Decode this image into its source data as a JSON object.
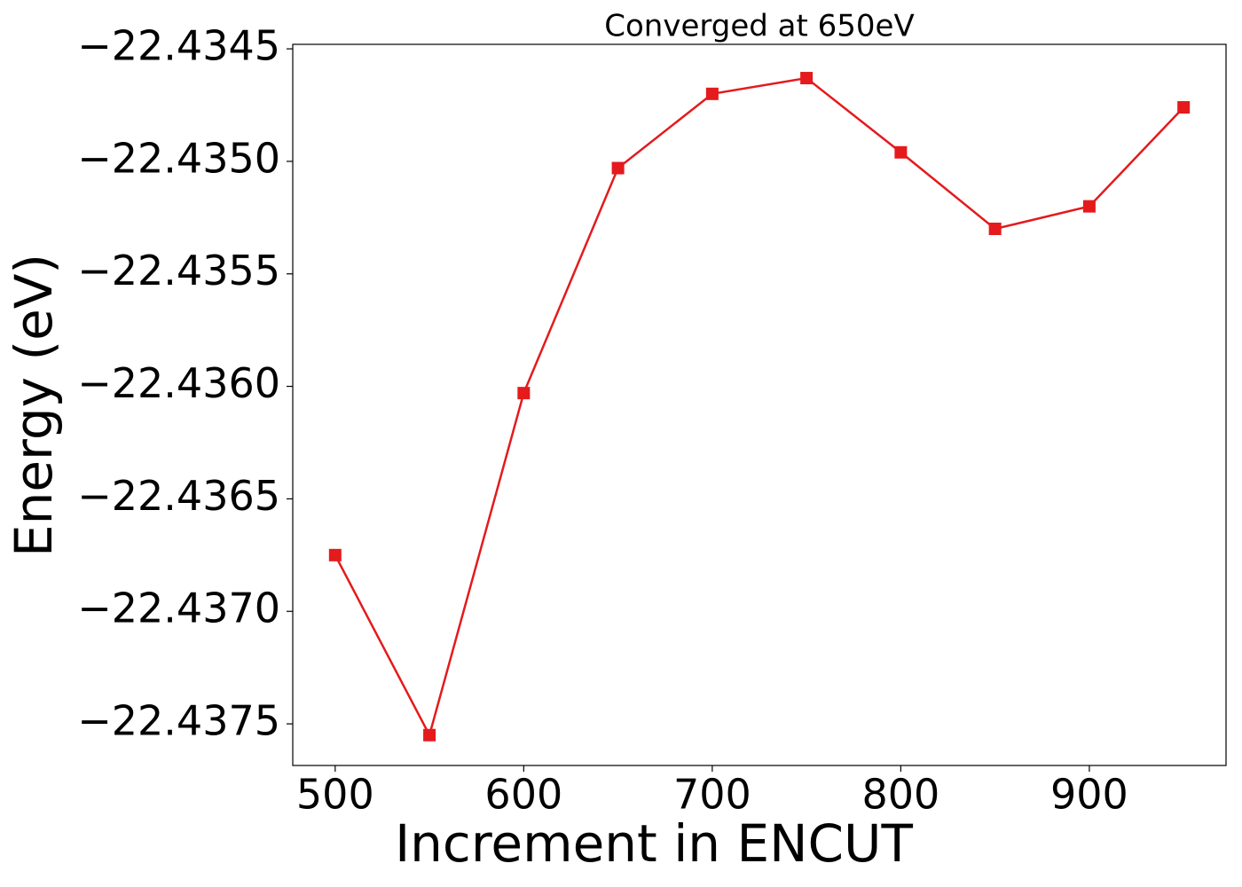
{
  "chart_data": {
    "type": "line",
    "title": "Converged at 650eV",
    "xlabel": "Increment in ENCUT",
    "ylabel": "Energy (eV)",
    "x": [
      500,
      550,
      600,
      650,
      700,
      750,
      800,
      850,
      900,
      950
    ],
    "series": [
      {
        "color": "#e41a1c",
        "values": [
          -22.43675,
          -22.43755,
          -22.43603,
          -22.43503,
          -22.4347,
          -22.43463,
          -22.43496,
          -22.4353,
          -22.4352,
          -22.43476
        ]
      }
    ],
    "xlim": [
      477.5,
      972.5
    ],
    "ylim": [
      -22.437685,
      -22.43448
    ],
    "xticks": [
      500,
      600,
      700,
      800,
      900
    ],
    "yticks": [
      {
        "value": -22.4375,
        "label": "−22.4375"
      },
      {
        "value": -22.437,
        "label": "−22.4370"
      },
      {
        "value": -22.4365,
        "label": "−22.4365"
      },
      {
        "value": -22.436,
        "label": "−22.4360"
      },
      {
        "value": -22.4355,
        "label": "−22.4355"
      },
      {
        "value": -22.435,
        "label": "−22.4350"
      },
      {
        "value": -22.4345,
        "label": "−22.4345"
      }
    ],
    "marker": "square",
    "grid": false
  }
}
